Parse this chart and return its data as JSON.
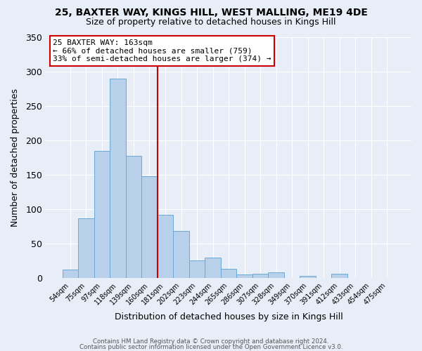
{
  "title1": "25, BAXTER WAY, KINGS HILL, WEST MALLING, ME19 4DE",
  "title2": "Size of property relative to detached houses in Kings Hill",
  "xlabel": "Distribution of detached houses by size in Kings Hill",
  "ylabel": "Number of detached properties",
  "bar_labels": [
    "54sqm",
    "75sqm",
    "97sqm",
    "118sqm",
    "139sqm",
    "160sqm",
    "181sqm",
    "202sqm",
    "223sqm",
    "244sqm",
    "265sqm",
    "286sqm",
    "307sqm",
    "328sqm",
    "349sqm",
    "370sqm",
    "391sqm",
    "412sqm",
    "433sqm",
    "454sqm",
    "475sqm"
  ],
  "bar_values": [
    13,
    87,
    185,
    289,
    177,
    148,
    92,
    69,
    26,
    30,
    14,
    5,
    7,
    9,
    0,
    3,
    0,
    6,
    0,
    0,
    0
  ],
  "bar_color": "#b8d0ea",
  "bar_edge_color": "#6aaad4",
  "vline_x": 5.5,
  "vline_color": "#cc0000",
  "ylim": [
    0,
    350
  ],
  "yticks": [
    0,
    50,
    100,
    150,
    200,
    250,
    300,
    350
  ],
  "annotation_title": "25 BAXTER WAY: 163sqm",
  "annotation_line1": "← 66% of detached houses are smaller (759)",
  "annotation_line2": "33% of semi-detached houses are larger (374) →",
  "annotation_box_color": "#ffffff",
  "annotation_box_edge": "#cc0000",
  "footer1": "Contains HM Land Registry data © Crown copyright and database right 2024.",
  "footer2": "Contains public sector information licensed under the Open Government Licence v3.0.",
  "background_color": "#e8eef8",
  "grid_color": "#ffffff"
}
